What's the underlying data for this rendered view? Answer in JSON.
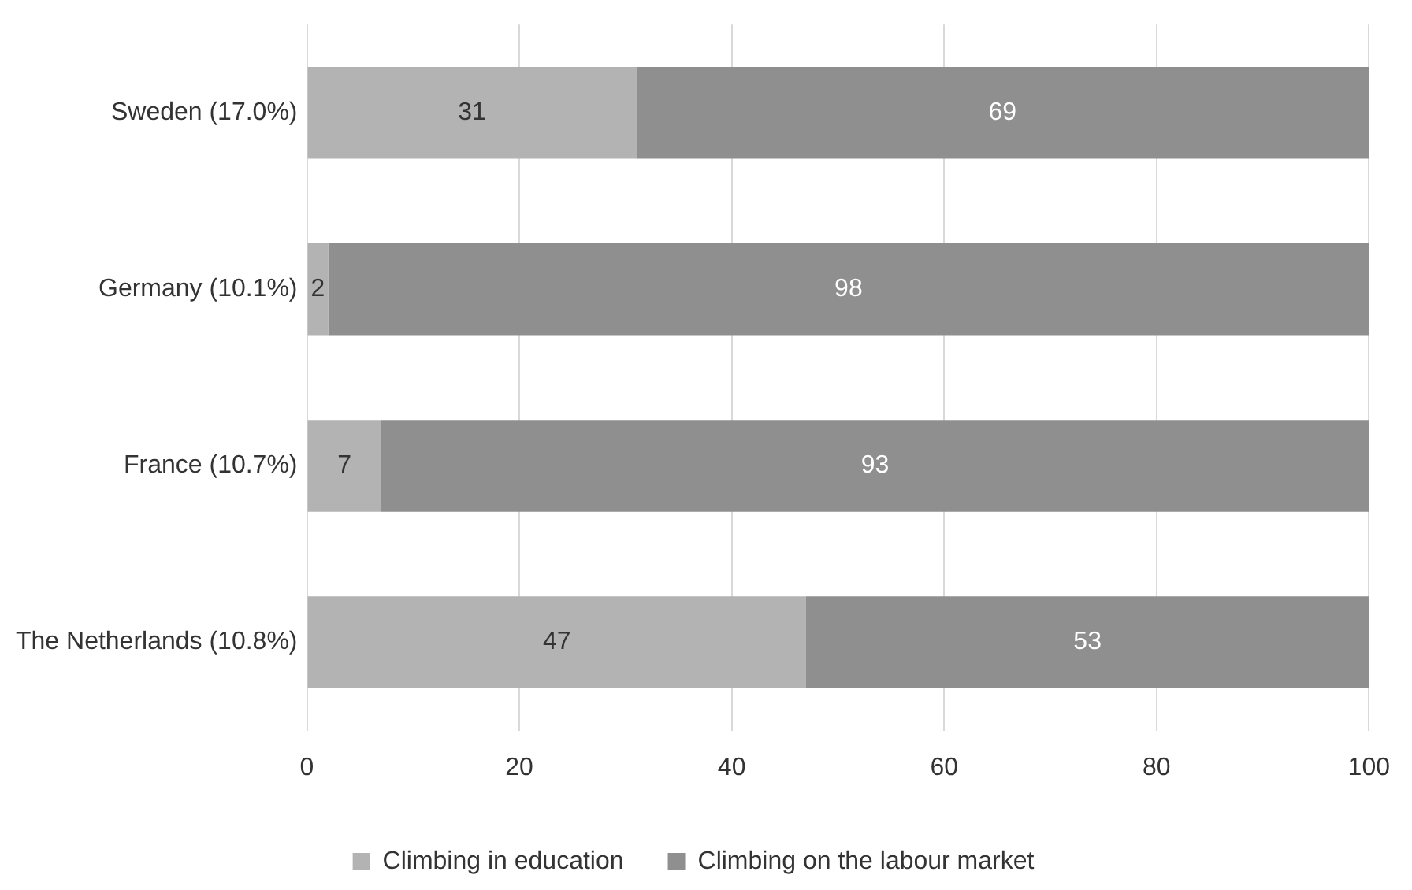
{
  "chart_data": {
    "type": "bar",
    "orientation": "horizontal",
    "stacked": true,
    "categories": [
      "Sweden (17.0%)",
      "Germany (10.1%)",
      "France (10.7%)",
      "The Netherlands (10.8%)"
    ],
    "series": [
      {
        "name": "Climbing in education",
        "color": "#b3b3b3",
        "values": [
          31,
          2,
          7,
          47
        ]
      },
      {
        "name": "Climbing on the labour market",
        "color": "#8f8f8f",
        "values": [
          69,
          98,
          93,
          53
        ]
      }
    ],
    "xlim": [
      0,
      100
    ],
    "xticks": [
      0,
      20,
      40,
      60,
      80,
      100
    ],
    "grid": "x",
    "legend": "bottom",
    "data_labels": true
  }
}
